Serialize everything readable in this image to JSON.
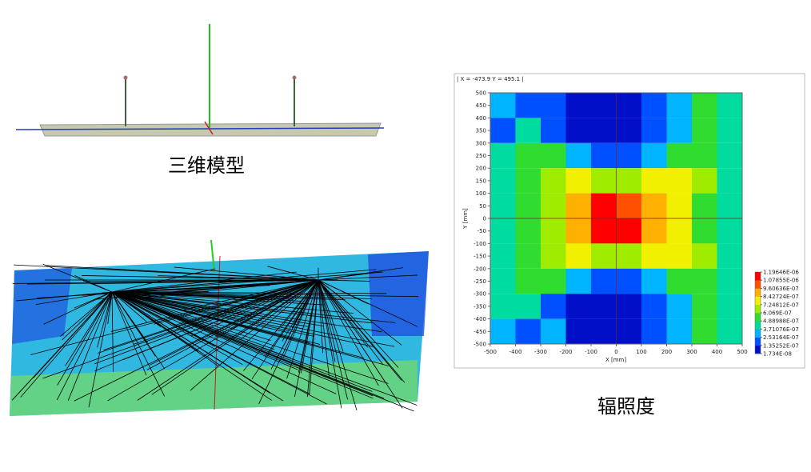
{
  "captions": {
    "model": "三维模型",
    "irradiance": "辐照度"
  },
  "chart_data": {
    "type": "heatmap",
    "header": "| X = -473.9  Y = 495.1 |",
    "xlabel": "X [mm]",
    "ylabel": "Y [mm]",
    "xlim": [
      -500,
      500
    ],
    "ylim": [
      -500,
      500
    ],
    "xticks": [
      -500,
      -400,
      -300,
      -200,
      -100,
      0,
      100,
      200,
      300,
      400,
      500
    ],
    "yticks": [
      500,
      450,
      400,
      350,
      300,
      250,
      200,
      150,
      100,
      50,
      0,
      -50,
      -100,
      -150,
      -200,
      -250,
      -300,
      -350,
      -400,
      -450,
      -500
    ],
    "x_edges": [
      -500,
      -400,
      -300,
      -200,
      -100,
      0,
      100,
      200,
      300,
      400,
      500
    ],
    "y_edges": [
      500,
      400,
      300,
      200,
      100,
      0,
      -100,
      -200,
      -300,
      -400,
      -500
    ],
    "values": [
      [
        3e-07,
        2e-07,
        1.5e-07,
        1.2e-07,
        1.2e-07,
        1.3e-07,
        1.5e-07,
        3e-07,
        5e-07,
        4e-07
      ],
      [
        1.5e-07,
        4e-07,
        2.5e-07,
        1.3e-07,
        1.2e-07,
        1.3e-07,
        1.6e-07,
        3.5e-07,
        5.5e-07,
        4e-07
      ],
      [
        4e-07,
        5.5e-07,
        5e-07,
        3e-07,
        2e-07,
        2.2e-07,
        3.5e-07,
        5.5e-07,
        6e-07,
        4.5e-07
      ],
      [
        4.5e-07,
        6e-07,
        7e-07,
        7.5e-07,
        6.5e-07,
        6.5e-07,
        7.5e-07,
        7.5e-07,
        6.5e-07,
        4.5e-07
      ],
      [
        4.5e-07,
        6e-07,
        7e-07,
        9e-07,
        1.1e-06,
        1.05e-06,
        9e-07,
        7.5e-07,
        6e-07,
        4.5e-07
      ],
      [
        4.5e-07,
        6e-07,
        7e-07,
        9e-07,
        1.15e-06,
        1.1e-06,
        9e-07,
        7.5e-07,
        6e-07,
        4.5e-07
      ],
      [
        4.5e-07,
        6e-07,
        7e-07,
        8e-07,
        7e-07,
        7e-07,
        7.5e-07,
        7.5e-07,
        6.5e-07,
        4.5e-07
      ],
      [
        4e-07,
        5.5e-07,
        5e-07,
        3e-07,
        2e-07,
        2e-07,
        3e-07,
        5e-07,
        6e-07,
        4.5e-07
      ],
      [
        4e-07,
        4e-07,
        2.5e-07,
        1.3e-07,
        1.2e-07,
        1.2e-07,
        1.5e-07,
        3.5e-07,
        5.5e-07,
        4e-07
      ],
      [
        3e-07,
        2e-07,
        3e-07,
        1.3e-07,
        1.2e-07,
        1.3e-07,
        1.5e-07,
        3e-07,
        5e-07,
        4e-07
      ]
    ],
    "clim": [
      1.734e-08,
      1.19646e-06
    ],
    "cticks": [
      {
        "value": 1.19646e-06,
        "label": "1.19646E-06"
      },
      {
        "value": 1.07855e-06,
        "label": "1.07855E-06"
      },
      {
        "value": 9.60636e-07,
        "label": "9.60636E-07"
      },
      {
        "value": 8.42724e-07,
        "label": "8.42724E-07"
      },
      {
        "value": 7.24812e-07,
        "label": "7.24812E-07"
      },
      {
        "value": 6.069e-07,
        "label": "6.069E-07"
      },
      {
        "value": 4.88988e-07,
        "label": "4.88988E-07"
      },
      {
        "value": 3.71076e-07,
        "label": "3.71076E-07"
      },
      {
        "value": 2.53164e-07,
        "label": "2.53164E-07"
      },
      {
        "value": 1.35252e-07,
        "label": "1.35252E-07"
      },
      {
        "value": 1.734e-08,
        "label": "1.734E-08"
      }
    ],
    "colormap": [
      "#0010c8",
      "#0050ff",
      "#00b4ff",
      "#00dca0",
      "#30dc30",
      "#a0ec00",
      "#f0f000",
      "#ffb000",
      "#ff5000",
      "#ff0000"
    ]
  }
}
